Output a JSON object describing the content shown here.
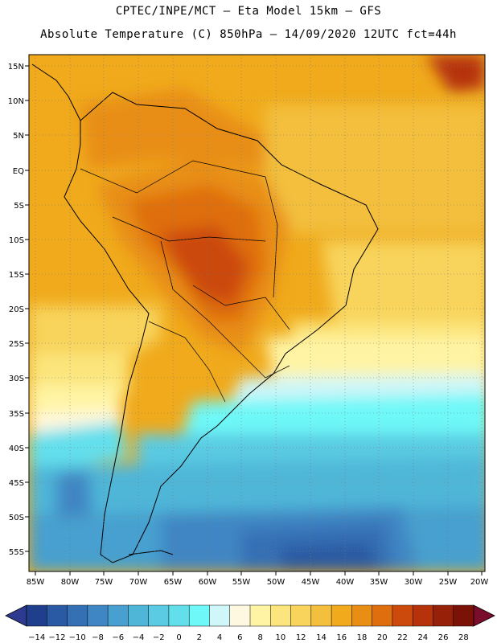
{
  "title": {
    "line1": "CPTEC/INPE/MCT –  Eta Model 15km – GFS",
    "line2": "Absolute Temperature (C) 850hPa – 14/09/2020 12UTC fct=44h"
  },
  "axes": {
    "lat_labels": [
      "15N",
      "10N",
      "5N",
      "EQ",
      "5S",
      "10S",
      "15S",
      "20S",
      "25S",
      "30S",
      "35S",
      "40S",
      "45S",
      "50S",
      "55S"
    ],
    "lon_labels": [
      "85W",
      "80W",
      "75W",
      "70W",
      "65W",
      "60W",
      "55W",
      "50W",
      "45W",
      "40W",
      "35W",
      "30W",
      "25W",
      "20W"
    ]
  },
  "colorbar": {
    "labels": [
      "-14",
      "-12",
      "-10",
      "-8",
      "-6",
      "-4",
      "-2",
      "0",
      "2",
      "4",
      "6",
      "8",
      "10",
      "12",
      "14",
      "16",
      "18",
      "20",
      "22",
      "24",
      "26",
      "28"
    ],
    "colors": [
      "#1f3f8c",
      "#2a5aa3",
      "#3570b5",
      "#3f86c4",
      "#47a0cf",
      "#50b6d8",
      "#5acbe2",
      "#63dfec",
      "#6ef8f8",
      "#cff6f8",
      "#fff8e0",
      "#fff4a4",
      "#fbe57c",
      "#f8d45c",
      "#f3bf3c",
      "#f0aa1c",
      "#e88e14",
      "#df6e0f",
      "#cc4a0c",
      "#b5320a",
      "#962008",
      "#7a1208"
    ],
    "under_color": "#2d3a8f",
    "over_color": "#7a0d2b"
  }
}
